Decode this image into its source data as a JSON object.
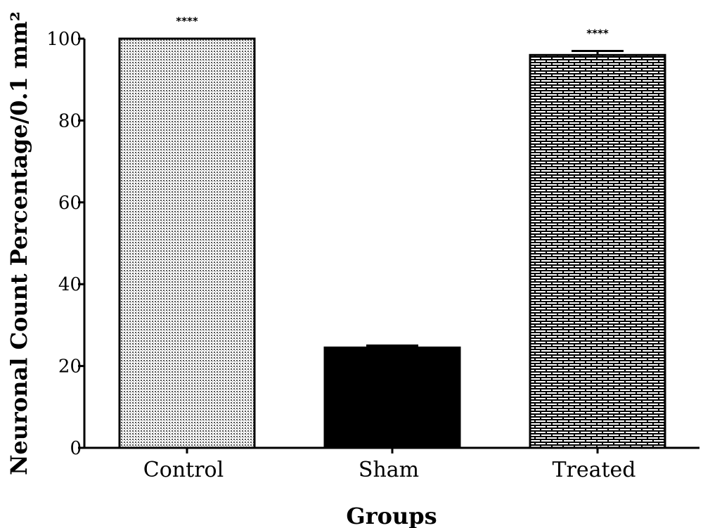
{
  "chart_data": {
    "type": "bar",
    "categories": [
      "Control",
      "Sham",
      "Treated"
    ],
    "values": [
      100,
      24.5,
      96
    ],
    "errors": [
      0,
      0.5,
      1
    ],
    "significance": [
      "****",
      "",
      "****"
    ],
    "xlabel": "Groups",
    "ylabel": "Neuronal Count Percentage/0.1 mm²",
    "ylim": [
      0,
      100
    ],
    "yticks": [
      0,
      20,
      40,
      60,
      80,
      100
    ],
    "grid": false,
    "legend": "none",
    "bar_fills": [
      "dotted",
      "solid-black",
      "brick"
    ]
  }
}
